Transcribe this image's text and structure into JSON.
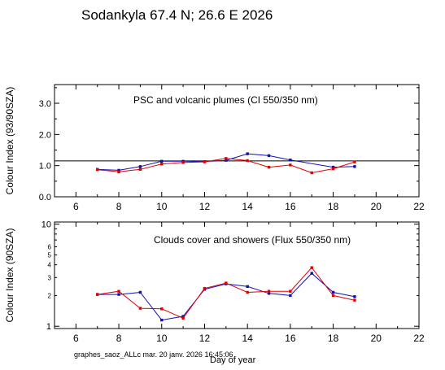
{
  "title": "Sodankyla  67.4 N; 26.6 E   2026",
  "footer": "graphes_saoz_ALLc  mar. 20 janv. 2026 16:45:06",
  "xlabel": "Day of year",
  "chart_data": [
    {
      "type": "line",
      "title": "PSC and volcanic plumes (CI 550/350 nm)",
      "ylabel": "Colour Index (93/90SZA)",
      "xlim": [
        5,
        22
      ],
      "ylim": [
        0,
        3.6
      ],
      "x_ticks": [
        6,
        8,
        10,
        12,
        14,
        16,
        18,
        20,
        22
      ],
      "y_ticks": [
        "0.0",
        "1.0",
        "2.0",
        "3.0"
      ],
      "y_tick_values": [
        0,
        1,
        2,
        3
      ],
      "reference_line": 1.15,
      "series": [
        {
          "color": "#1010b0",
          "x": [
            7,
            8,
            9,
            10,
            11,
            12,
            13,
            14,
            15,
            16,
            18,
            19
          ],
          "y": [
            0.88,
            0.85,
            0.97,
            1.14,
            1.14,
            1.13,
            1.17,
            1.38,
            1.32,
            1.18,
            0.95,
            0.97
          ]
        },
        {
          "color": "#e00000",
          "x": [
            7,
            8,
            9,
            10,
            11,
            12,
            13,
            14,
            15,
            16,
            17,
            18,
            19
          ],
          "y": [
            0.87,
            0.8,
            0.88,
            1.05,
            1.1,
            1.12,
            1.23,
            1.16,
            0.95,
            1.02,
            0.77,
            0.9,
            1.12
          ]
        }
      ]
    },
    {
      "type": "line",
      "title": "Clouds cover and showers (Flux 550/350 nm)",
      "ylabel": "Colour Index (90SZA)",
      "yscale": "log",
      "xlim": [
        5,
        22
      ],
      "ylim": [
        0.95,
        10.5
      ],
      "x_ticks": [
        6,
        8,
        10,
        12,
        14,
        16,
        18,
        20,
        22
      ],
      "y_ticks_major": [
        "1",
        "10"
      ],
      "y_ticks_major_values": [
        1,
        10
      ],
      "y_ticks_minor": [
        "2",
        "3",
        "4",
        "5",
        "6"
      ],
      "y_ticks_minor_values": [
        2,
        3,
        4,
        5,
        6
      ],
      "series": [
        {
          "color": "#1010b0",
          "x": [
            7,
            8,
            9,
            10,
            11,
            12,
            13,
            14,
            15,
            16,
            17,
            18,
            19
          ],
          "y": [
            2.05,
            2.05,
            2.15,
            1.15,
            1.25,
            2.3,
            2.6,
            2.45,
            2.1,
            2.0,
            3.3,
            2.15,
            1.95
          ]
        },
        {
          "color": "#e00000",
          "x": [
            7,
            8,
            9,
            10,
            11,
            12,
            13,
            14,
            15,
            16,
            17,
            18,
            19
          ],
          "y": [
            2.05,
            2.2,
            1.5,
            1.48,
            1.2,
            2.35,
            2.65,
            2.15,
            2.2,
            2.2,
            3.75,
            2.0,
            1.8
          ]
        }
      ]
    }
  ]
}
